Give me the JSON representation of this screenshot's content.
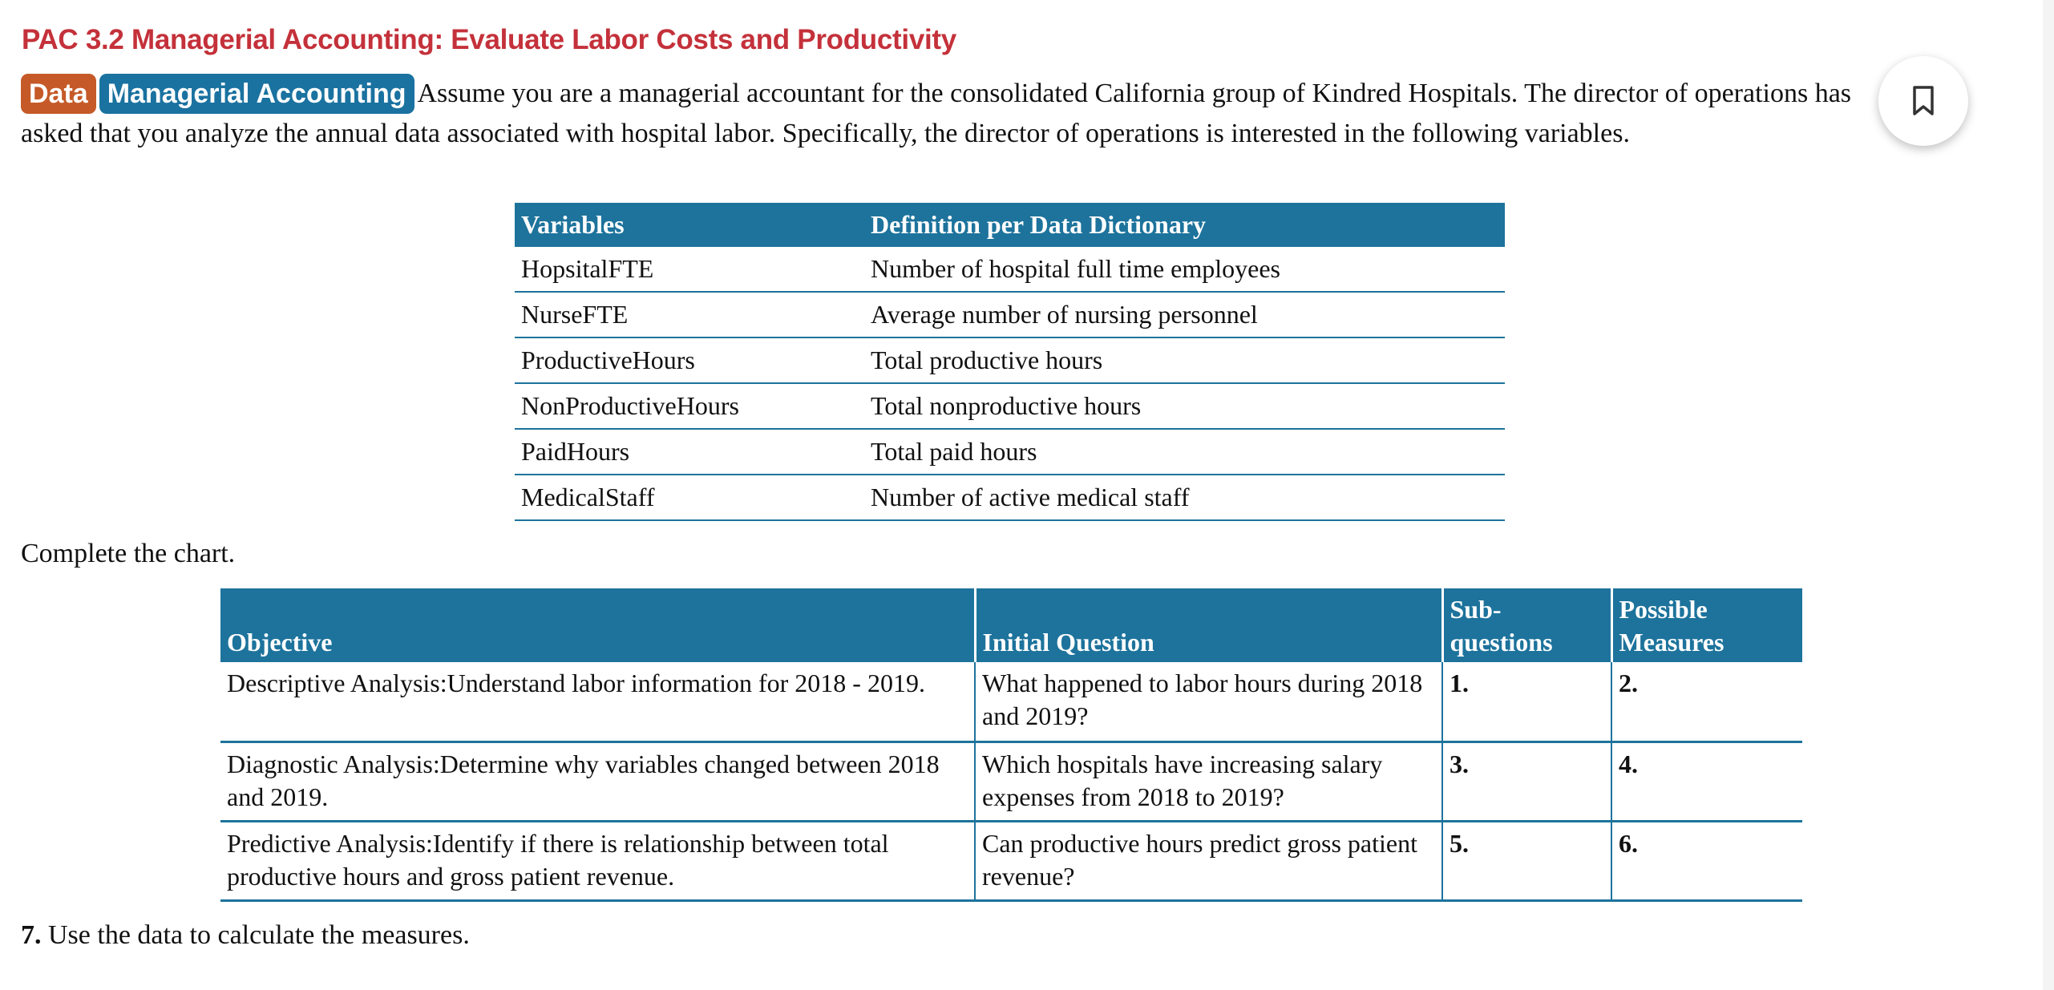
{
  "title": "PAC 3.2 Managerial Accounting: Evaluate Labor Costs and Productivity",
  "badges": [
    "Data",
    "Managerial Accounting"
  ],
  "intro": "Assume you are a managerial accountant for the consolidated California group of Kindred Hospitals. The director of operations has asked that you analyze the annual data associated with hospital labor. Specifically, the director of operations is interested in the following variables.",
  "bookmark_icon": "bookmark-icon",
  "variables_table": {
    "headers": [
      "Variables",
      "Definition per Data Dictionary"
    ],
    "rows": [
      [
        "HopsitalFTE",
        "Number of hospital full time employees"
      ],
      [
        "NurseFTE",
        "Average number of nursing personnel"
      ],
      [
        "ProductiveHours",
        "Total productive hours"
      ],
      [
        "NonProductiveHours",
        "Total nonproductive hours"
      ],
      [
        "PaidHours",
        "Total paid hours"
      ],
      [
        "MedicalStaff",
        "Number of active medical staff"
      ]
    ]
  },
  "complete_text": "Complete the chart.",
  "chart_table": {
    "headers": [
      "Objective",
      "Initial Question",
      "Sub-questions",
      "Possible Measures"
    ],
    "rows": [
      [
        "Descriptive Analysis:Understand labor information for 2018 - 2019.",
        "What happened to labor hours during 2018 and 2019?",
        "1.",
        "2."
      ],
      [
        "Diagnostic Analysis:Determine why variables changed between 2018 and 2019.",
        "Which hospitals have increasing salary expenses from 2018 to 2019?",
        "3.",
        "4."
      ],
      [
        "Predictive Analysis:Identify if there is relationship between total productive hours and gross patient revenue.",
        "Can productive hours predict gross patient revenue?",
        "5.",
        "6."
      ]
    ]
  },
  "step7": {
    "num": "7.",
    "text": "Use the data to calculate the measures."
  }
}
